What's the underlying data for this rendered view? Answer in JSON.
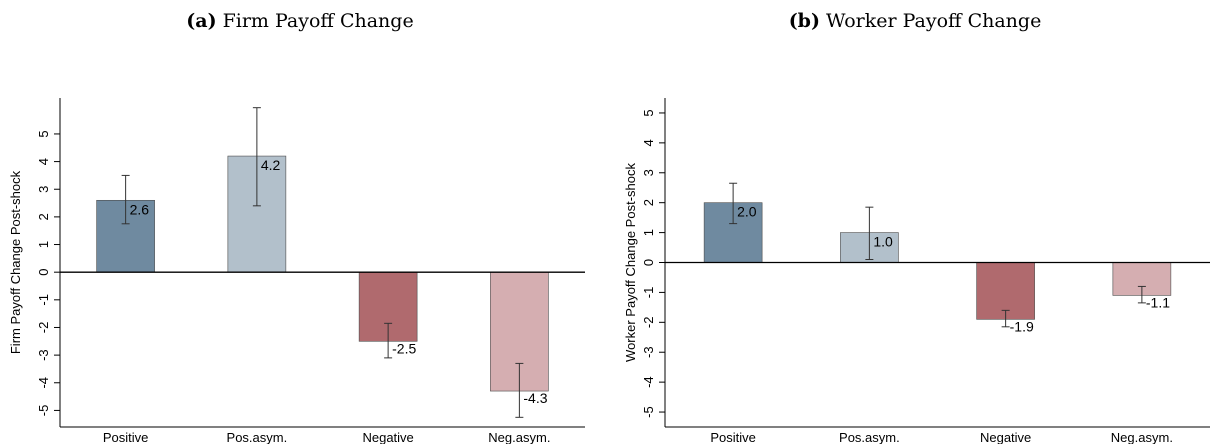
{
  "chart_data": [
    {
      "type": "bar",
      "panel_label": "(a)",
      "title": "Firm Payoff Change",
      "ylabel": "Firm Payoff Change Post-shock",
      "xlabel": "",
      "categories": [
        "Positive",
        "Pos.asym.",
        "Negative",
        "Neg.asym."
      ],
      "values": [
        2.6,
        4.2,
        -2.5,
        -4.3
      ],
      "value_labels": [
        "2.6",
        "4.2",
        "-2.5",
        "-4.3"
      ],
      "ci_low": [
        1.75,
        2.4,
        -3.1,
        -5.25
      ],
      "ci_high": [
        3.5,
        5.95,
        -1.85,
        -3.3
      ],
      "ylim": [
        -5.6,
        6.3
      ],
      "yticks": [
        -5,
        -4,
        -3,
        -2,
        -1,
        0,
        1,
        2,
        3,
        4,
        5
      ],
      "colors": [
        "#6f8aa0",
        "#b2c0cb",
        "#b06a6e",
        "#d5aeb1"
      ]
    },
    {
      "type": "bar",
      "panel_label": "(b)",
      "title": "Worker Payoff Change",
      "ylabel": "Worker Payoff Change Post-shock",
      "xlabel": "",
      "categories": [
        "Positive",
        "Pos.asym.",
        "Negative",
        "Neg.asym."
      ],
      "values": [
        2.0,
        1.0,
        -1.9,
        -1.1
      ],
      "value_labels": [
        "2.0",
        "1.0",
        "-1.9",
        "-1.1"
      ],
      "ci_low": [
        1.3,
        0.1,
        -2.15,
        -1.35
      ],
      "ci_high": [
        2.65,
        1.85,
        -1.6,
        -0.8
      ],
      "ylim": [
        -5.5,
        5.5
      ],
      "yticks": [
        -5,
        -4,
        -3,
        -2,
        -1,
        0,
        1,
        2,
        3,
        4,
        5
      ],
      "colors": [
        "#6f8aa0",
        "#b2c0cb",
        "#b06a6e",
        "#d5aeb1"
      ]
    }
  ]
}
